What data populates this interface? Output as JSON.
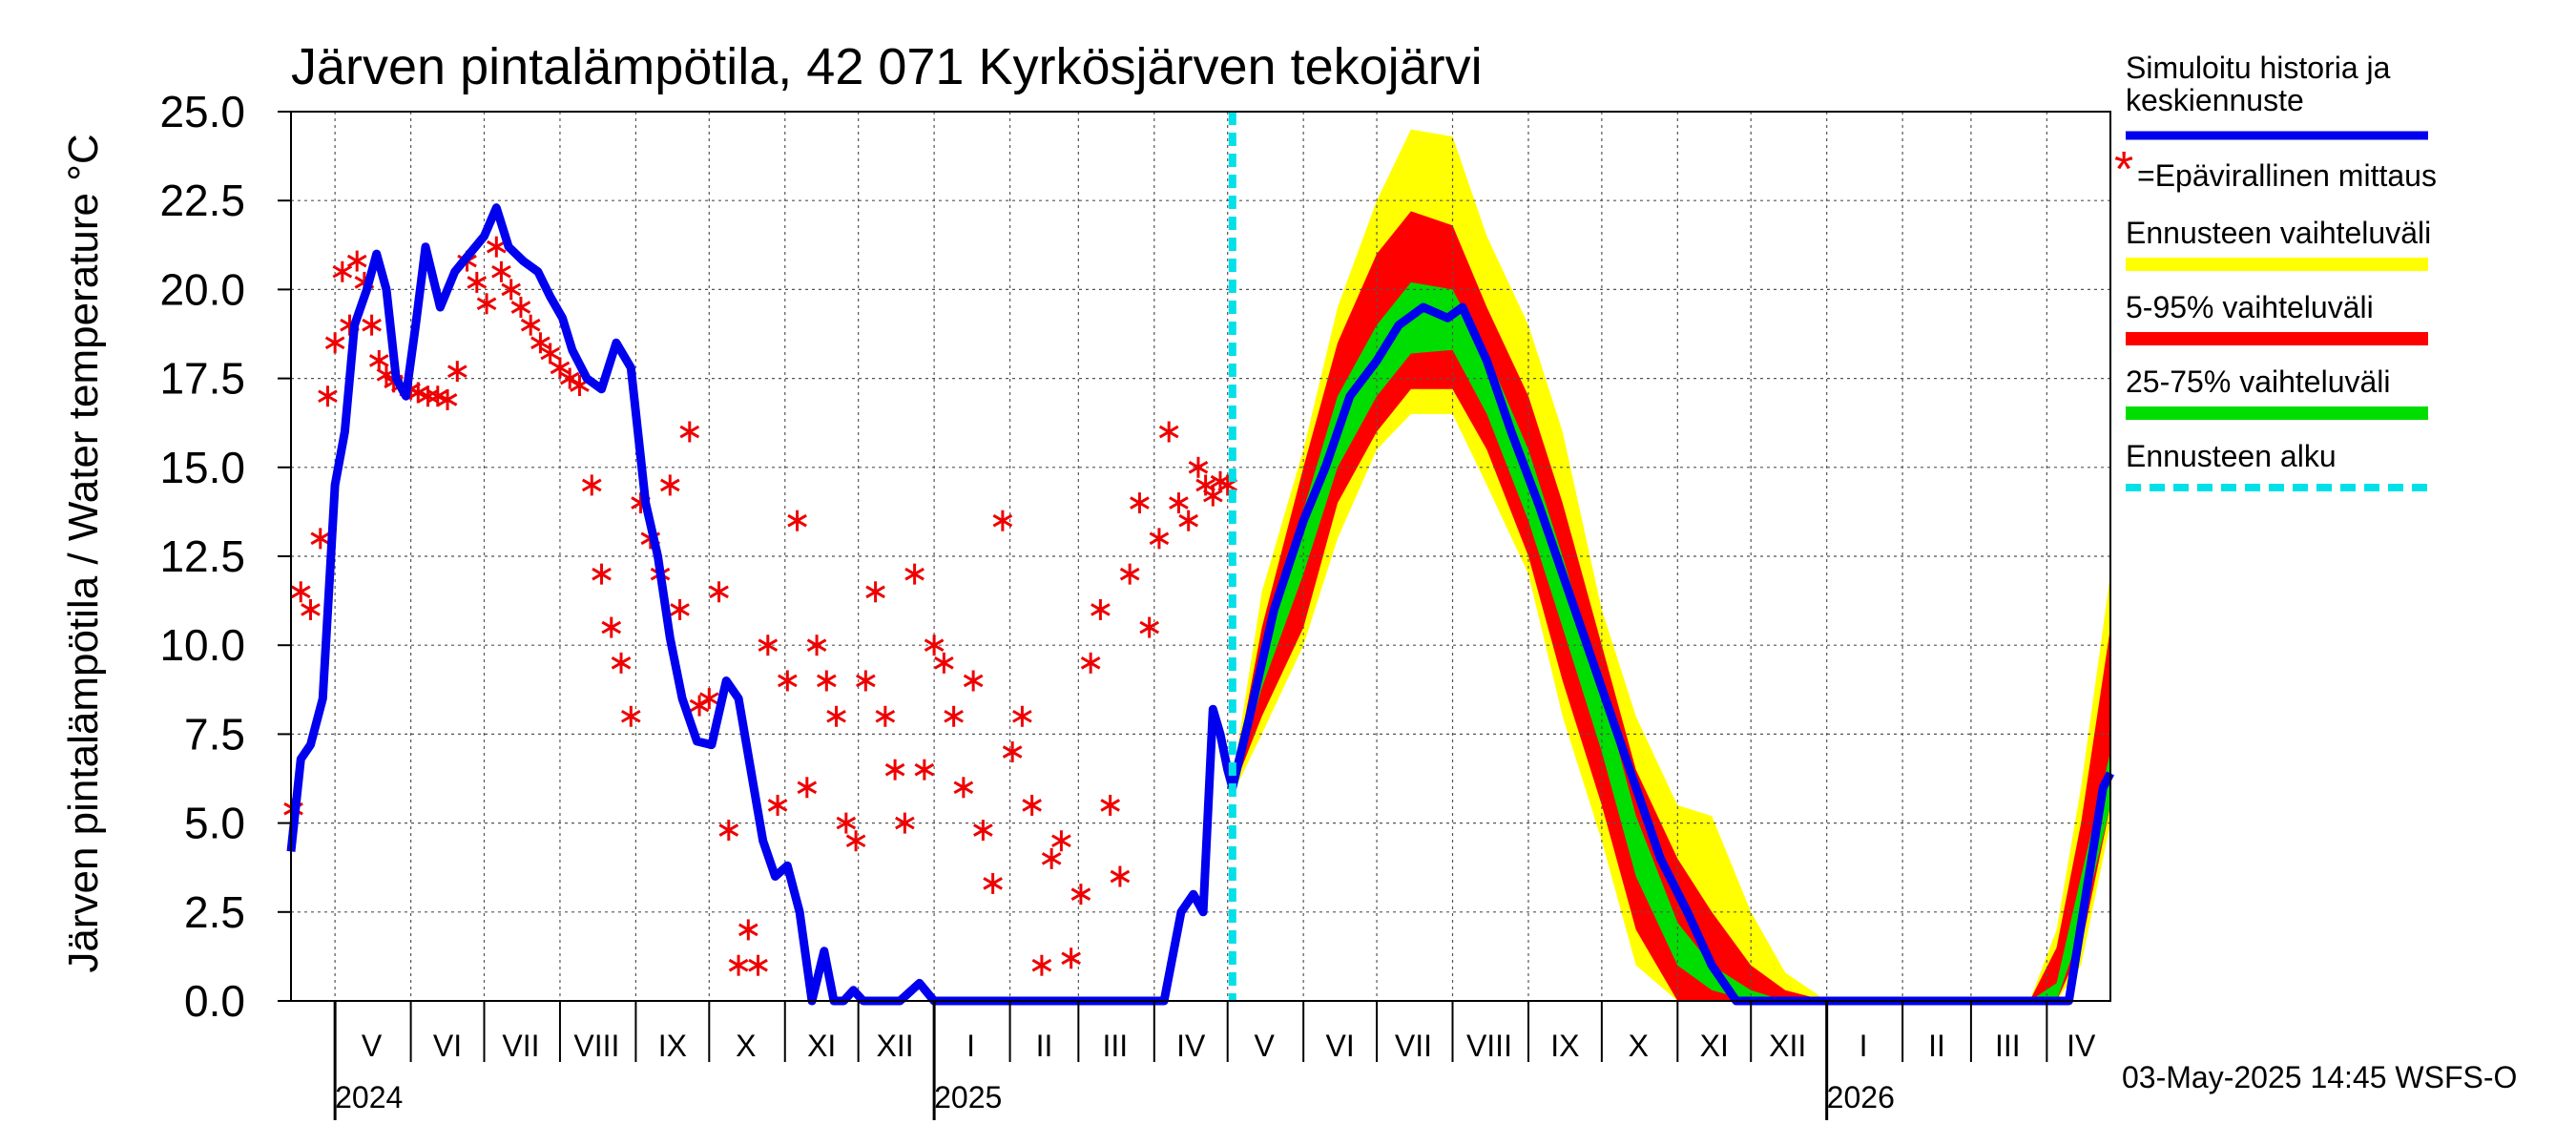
{
  "chart_data": {
    "type": "line",
    "title": "Järven pintalämpötila, 42 071 Kyrkösjärven tekojärvi",
    "ylabel": "Järven pintalämpötila / Water temperature °C",
    "ylim": [
      0,
      25
    ],
    "y_ticks": [
      "0.0",
      "2.5",
      "5.0",
      "7.5",
      "10.0",
      "12.5",
      "15.0",
      "17.5",
      "20.0",
      "22.5",
      "25.0"
    ],
    "xlim": [
      "2024-04-13",
      "2026-04-27"
    ],
    "grid": true,
    "month_labels": [
      {
        "label": "V",
        "date": "2024-05-16"
      },
      {
        "label": "VI",
        "date": "2024-06-16"
      },
      {
        "label": "VII",
        "date": "2024-07-16"
      },
      {
        "label": "VIII",
        "date": "2024-08-16"
      },
      {
        "label": "IX",
        "date": "2024-09-16"
      },
      {
        "label": "X",
        "date": "2024-10-16"
      },
      {
        "label": "XI",
        "date": "2024-11-16"
      },
      {
        "label": "XII",
        "date": "2024-12-16"
      },
      {
        "label": "I",
        "date": "2025-01-16"
      },
      {
        "label": "II",
        "date": "2025-02-15"
      },
      {
        "label": "III",
        "date": "2025-03-16"
      },
      {
        "label": "IV",
        "date": "2025-04-16"
      },
      {
        "label": "V",
        "date": "2025-05-16"
      },
      {
        "label": "VI",
        "date": "2025-06-16"
      },
      {
        "label": "VII",
        "date": "2025-07-16"
      },
      {
        "label": "VIII",
        "date": "2025-08-16"
      },
      {
        "label": "IX",
        "date": "2025-09-16"
      },
      {
        "label": "X",
        "date": "2025-10-16"
      },
      {
        "label": "XI",
        "date": "2025-11-16"
      },
      {
        "label": "XII",
        "date": "2025-12-16"
      },
      {
        "label": "I",
        "date": "2026-01-16"
      },
      {
        "label": "II",
        "date": "2026-02-15"
      },
      {
        "label": "III",
        "date": "2026-03-16"
      },
      {
        "label": "IV",
        "date": "2026-04-15"
      }
    ],
    "month_boundaries": [
      "2024-05-01",
      "2024-06-01",
      "2024-07-01",
      "2024-08-01",
      "2024-09-01",
      "2024-10-01",
      "2024-11-01",
      "2024-12-01",
      "2025-01-01",
      "2025-02-01",
      "2025-03-01",
      "2025-04-01",
      "2025-05-01",
      "2025-06-01",
      "2025-07-01",
      "2025-08-01",
      "2025-09-01",
      "2025-10-01",
      "2025-11-01",
      "2025-12-01",
      "2026-01-01",
      "2026-02-01",
      "2026-03-01",
      "2026-04-01"
    ],
    "year_labels": [
      {
        "label": "2024",
        "date": "2024-05-01"
      },
      {
        "label": "2025",
        "date": "2025-01-01"
      },
      {
        "label": "2026",
        "date": "2026-01-01"
      }
    ],
    "forecast_start": "2025-05-03",
    "colors": {
      "history": "#0000ee",
      "measurement": "#ee0000",
      "range_full": "#ffff00",
      "range_5_95": "#ff0000",
      "range_25_75": "#00dd00",
      "forecast_start": "#00e0e8"
    },
    "legend": {
      "placement": "right",
      "items": [
        {
          "label": "Simuloitu historia ja keskiennuste",
          "line1": "Simuloitu historia ja",
          "line2": "keskiennuste",
          "color": "#0000ee"
        },
        {
          "label": "=Epävirallinen mittaus",
          "color": "#ee0000"
        },
        {
          "label": "Ennusteen vaihteluväli",
          "color": "#ffff00"
        },
        {
          "label": "5-95% vaihteluväli",
          "color": "#ff0000"
        },
        {
          "label": "25-75% vaihteluväli",
          "color": "#00dd00"
        },
        {
          "label": "Ennusteen alku",
          "color": "#00e0e8"
        }
      ]
    },
    "series": [
      {
        "name": "Simuloitu historia ja keskiennuste",
        "x": [
          "2024-04-13",
          "2024-04-17",
          "2024-04-21",
          "2024-04-26",
          "2024-05-01",
          "2024-05-05",
          "2024-05-09",
          "2024-05-14",
          "2024-05-18",
          "2024-05-22",
          "2024-05-26",
          "2024-05-30",
          "2024-06-03",
          "2024-06-07",
          "2024-06-13",
          "2024-06-19",
          "2024-06-25",
          "2024-07-01",
          "2024-07-06",
          "2024-07-11",
          "2024-07-17",
          "2024-07-23",
          "2024-07-28",
          "2024-08-02",
          "2024-08-06",
          "2024-08-12",
          "2024-08-18",
          "2024-08-24",
          "2024-08-30",
          "2024-09-05",
          "2024-09-10",
          "2024-09-15",
          "2024-09-20",
          "2024-09-26",
          "2024-10-02",
          "2024-10-08",
          "2024-10-13",
          "2024-10-18",
          "2024-10-23",
          "2024-10-28",
          "2024-11-02",
          "2024-11-07",
          "2024-11-12",
          "2024-11-17",
          "2024-11-21",
          "2024-11-25",
          "2024-11-29",
          "2024-12-03",
          "2024-12-09",
          "2024-12-18",
          "2024-12-26",
          "2025-01-01",
          "2025-01-10",
          "2025-01-30",
          "2025-02-20",
          "2025-03-15",
          "2025-04-05",
          "2025-04-12",
          "2025-04-17",
          "2025-04-21",
          "2025-04-25",
          "2025-04-28",
          "2025-05-01",
          "2025-05-03",
          "2025-05-10",
          "2025-05-20",
          "2025-06-01",
          "2025-06-10",
          "2025-06-20",
          "2025-07-01",
          "2025-07-10",
          "2025-07-20",
          "2025-07-30",
          "2025-08-05",
          "2025-08-15",
          "2025-08-25",
          "2025-09-05",
          "2025-09-15",
          "2025-09-25",
          "2025-10-05",
          "2025-10-15",
          "2025-10-25",
          "2025-11-05",
          "2025-11-15",
          "2025-11-25",
          "2025-12-05",
          "2025-12-20",
          "2026-01-10",
          "2026-02-10",
          "2026-03-10",
          "2026-04-03",
          "2026-04-10",
          "2026-04-17",
          "2026-04-24",
          "2026-04-27"
        ],
        "values": [
          4.2,
          6.8,
          7.2,
          8.5,
          14.5,
          16,
          19,
          20,
          21,
          20,
          17.5,
          17,
          19,
          21.2,
          19.5,
          20.5,
          21,
          21.5,
          22.3,
          21.2,
          20.8,
          20.5,
          19.8,
          19.2,
          18.3,
          17.5,
          17.2,
          18.5,
          17.8,
          14,
          12.5,
          10.2,
          8.5,
          7.3,
          7.2,
          9,
          8.5,
          6.5,
          4.5,
          3.5,
          3.8,
          2.5,
          0,
          1.4,
          0,
          0,
          0.3,
          0,
          0,
          0,
          0.5,
          0,
          0,
          0,
          0,
          0,
          0,
          2.5,
          3,
          2.5,
          8.2,
          7.5,
          6.5,
          6.0,
          8,
          11,
          13.5,
          15,
          17,
          18,
          19,
          19.5,
          19.2,
          19.5,
          18,
          16,
          14,
          12,
          10,
          8,
          6,
          4,
          2.5,
          1,
          0,
          0,
          0,
          0,
          0,
          0,
          0,
          0,
          3,
          6,
          6.4
        ]
      },
      {
        "name": "=Epävirallinen mittaus",
        "x": [
          "2024-04-14",
          "2024-04-17",
          "2024-04-21",
          "2024-04-25",
          "2024-04-28",
          "2024-05-01",
          "2024-05-04",
          "2024-05-07",
          "2024-05-10",
          "2024-05-13",
          "2024-05-16",
          "2024-05-19",
          "2024-05-22",
          "2024-05-25",
          "2024-05-28",
          "2024-06-01",
          "2024-06-04",
          "2024-06-08",
          "2024-06-12",
          "2024-06-16",
          "2024-06-20",
          "2024-06-24",
          "2024-06-28",
          "2024-07-02",
          "2024-07-06",
          "2024-07-08",
          "2024-07-12",
          "2024-07-16",
          "2024-07-20",
          "2024-07-24",
          "2024-07-28",
          "2024-08-01",
          "2024-08-05",
          "2024-08-09",
          "2024-08-14",
          "2024-08-18",
          "2024-08-22",
          "2024-08-26",
          "2024-08-30",
          "2024-09-03",
          "2024-09-07",
          "2024-09-11",
          "2024-09-15",
          "2024-09-19",
          "2024-09-23",
          "2024-09-27",
          "2024-10-01",
          "2024-10-05",
          "2024-10-09",
          "2024-10-13",
          "2024-10-17",
          "2024-10-21",
          "2024-10-25",
          "2024-10-29",
          "2024-11-02",
          "2024-11-06",
          "2024-11-10",
          "2024-11-14",
          "2024-11-18",
          "2024-11-22",
          "2024-11-26",
          "2024-11-30",
          "2024-12-04",
          "2024-12-08",
          "2024-12-12",
          "2024-12-16",
          "2024-12-20",
          "2024-12-24",
          "2024-12-28",
          "2025-01-01",
          "2025-01-05",
          "2025-01-09",
          "2025-01-13",
          "2025-01-17",
          "2025-01-21",
          "2025-01-25",
          "2025-01-29",
          "2025-02-02",
          "2025-02-06",
          "2025-02-10",
          "2025-02-14",
          "2025-02-18",
          "2025-02-22",
          "2025-02-26",
          "2025-03-02",
          "2025-03-06",
          "2025-03-10",
          "2025-03-14",
          "2025-03-18",
          "2025-03-22",
          "2025-03-26",
          "2025-03-30",
          "2025-04-03",
          "2025-04-07",
          "2025-04-11",
          "2025-04-15",
          "2025-04-19",
          "2025-04-22",
          "2025-04-25",
          "2025-04-28",
          "2025-05-01"
        ],
        "values": [
          5.4,
          11.5,
          11,
          13,
          17,
          18.5,
          20.5,
          19,
          20.8,
          20.2,
          19,
          18,
          17.6,
          17.4,
          17.3,
          17.2,
          17.1,
          17,
          17.0,
          16.9,
          17.7,
          20.8,
          20.2,
          19.6,
          21.2,
          20.5,
          20,
          19.5,
          19,
          18.5,
          18.2,
          17.8,
          17.5,
          17.3,
          14.5,
          12,
          10.5,
          9.5,
          8,
          14,
          13,
          12,
          14.5,
          11,
          16,
          8.3,
          8.5,
          11.5,
          4.8,
          1.0,
          2.0,
          1.0,
          10,
          5.5,
          9,
          13.5,
          6,
          10,
          9,
          8,
          5,
          4.5,
          9,
          11.5,
          8,
          6.5,
          5,
          12,
          6.5,
          10,
          9.5,
          8,
          6,
          9,
          4.8,
          3.3,
          13.5,
          7,
          8,
          5.5,
          1,
          4,
          4.5,
          1.2,
          3,
          9.5,
          11,
          5.5,
          3.5,
          12,
          14,
          10.5,
          13,
          16,
          14,
          13.5,
          15,
          14.5,
          14.2,
          14.6,
          14.5
        ]
      }
    ],
    "band_x": [
      "2025-05-03",
      "2025-05-15",
      "2025-06-01",
      "2025-06-15",
      "2025-07-01",
      "2025-07-15",
      "2025-08-01",
      "2025-08-15",
      "2025-09-01",
      "2025-09-15",
      "2025-10-01",
      "2025-10-15",
      "2025-11-01",
      "2025-11-15",
      "2025-12-01",
      "2025-12-15",
      "2026-01-01",
      "2026-03-25",
      "2026-04-05",
      "2026-04-15",
      "2026-04-27"
    ],
    "bands": {
      "full": {
        "lower": [
          5.8,
          7.5,
          10,
          13,
          15.5,
          16.5,
          16.5,
          14.5,
          12,
          8,
          4.5,
          1,
          0,
          0,
          0,
          0,
          0,
          0,
          0,
          1,
          5
        ],
        "upper": [
          6.2,
          11.5,
          15.5,
          19.5,
          22.5,
          24.5,
          24.3,
          21.5,
          19,
          16,
          11,
          8,
          5.5,
          5.2,
          2.5,
          0.8,
          0,
          0,
          2,
          6,
          12
        ]
      },
      "p5_95": {
        "lower": [
          5.9,
          8,
          10.5,
          14,
          16,
          17.2,
          17.2,
          15.5,
          12.5,
          9,
          5.5,
          2,
          0,
          0,
          0,
          0,
          0,
          0,
          0,
          1.5,
          5.5
        ],
        "upper": [
          6.1,
          10.5,
          15,
          18.5,
          21,
          22.2,
          21.8,
          19.5,
          17,
          14,
          10,
          6.5,
          4,
          2.5,
          1,
          0.3,
          0,
          0,
          1.5,
          5,
          10.5
        ]
      },
      "p25_75": {
        "lower": [
          5.95,
          8.8,
          12,
          15,
          17,
          18.2,
          18.3,
          16.5,
          13.5,
          10.5,
          7,
          3.5,
          1,
          0.3,
          0,
          0,
          0,
          0,
          0,
          2,
          5.5
        ],
        "upper": [
          6.05,
          9.8,
          13.8,
          17,
          19,
          20.2,
          20,
          18.2,
          15.5,
          12.5,
          8.8,
          5.2,
          2.2,
          1,
          0.3,
          0,
          0,
          0,
          0.5,
          3.5,
          7
        ]
      }
    }
  },
  "footer": {
    "timestamp": "03-May-2025 14:45 WSFS-O"
  }
}
